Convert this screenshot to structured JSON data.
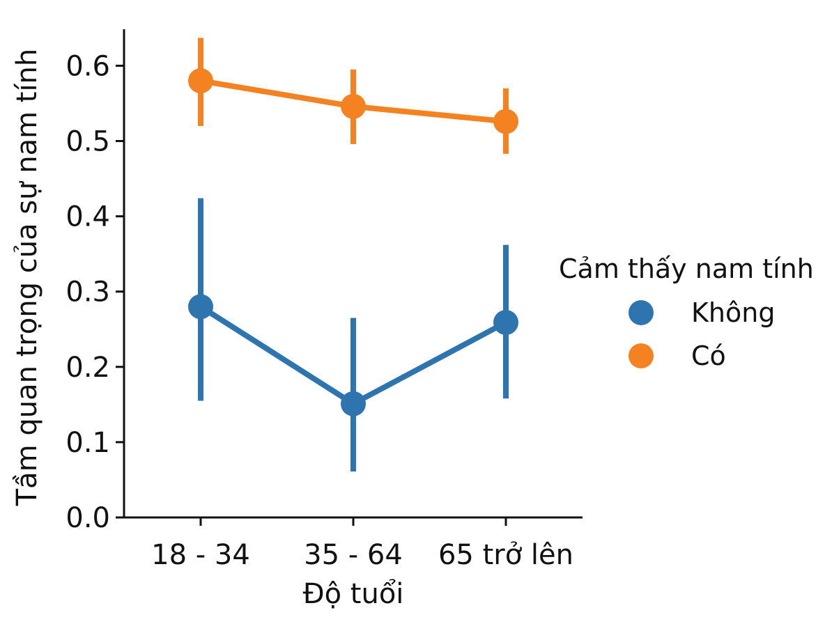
{
  "chart_data": {
    "type": "line",
    "title": "",
    "xlabel": "Độ tuổi",
    "ylabel": "Tầm quan trọng của sự nam tính",
    "categories": [
      "18 - 34",
      "35 - 64",
      "65 trở lên"
    ],
    "ylim": [
      0,
      0.65
    ],
    "yticks": [
      0.0,
      0.1,
      0.2,
      0.3,
      0.4,
      0.5,
      0.6
    ],
    "ytick_labels": [
      "0.0",
      "0.1",
      "0.2",
      "0.3",
      "0.4",
      "0.5",
      "0.6"
    ],
    "grid": false,
    "legend": {
      "title": "Cảm thấy nam tính",
      "placement": "right"
    },
    "series": [
      {
        "name": "Không",
        "color": "#2e75b0",
        "values": [
          0.28,
          0.151,
          0.259
        ],
        "err_low": [
          0.155,
          0.061,
          0.158
        ],
        "err_high": [
          0.424,
          0.265,
          0.362
        ]
      },
      {
        "name": "Có",
        "color": "#f58220",
        "values": [
          0.58,
          0.546,
          0.526
        ],
        "err_low": [
          0.52,
          0.496,
          0.483
        ],
        "err_high": [
          0.637,
          0.595,
          0.57
        ]
      }
    ]
  }
}
